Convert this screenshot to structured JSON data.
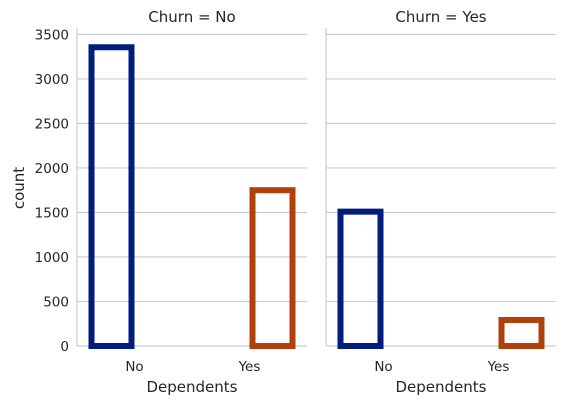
{
  "chart_data": {
    "type": "bar",
    "style": "faceted count plot with outlined (unfilled) bars",
    "ylabel": "count",
    "ylim": [
      0,
      3550
    ],
    "yticks": [
      0,
      500,
      1000,
      1500,
      2000,
      2500,
      3000,
      3500
    ],
    "grid": "horizontal",
    "categories": [
      "No",
      "Yes"
    ],
    "colors": [
      "#001c7f",
      "#b1400d"
    ],
    "panels": [
      {
        "title": "Churn = No",
        "xlabel": "Dependents",
        "values": [
          3390,
          1784
        ]
      },
      {
        "title": "Churn = Yes",
        "xlabel": "Dependents",
        "values": [
          1543,
          326
        ]
      }
    ]
  }
}
